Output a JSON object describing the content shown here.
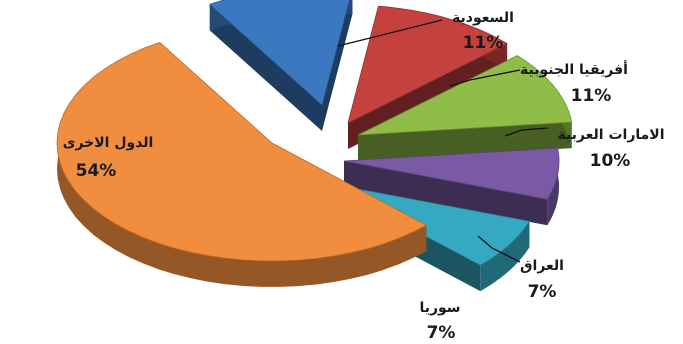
{
  "chart_data": {
    "type": "pie",
    "title": "",
    "slices": [
      {
        "label": "السعودية",
        "value_text": "11%",
        "value": 11,
        "color": "#3b78bf"
      },
      {
        "label": "أفريقيا الجنوبية",
        "value_text": "11%",
        "value": 11,
        "color": "#c4413e"
      },
      {
        "label": "الامارات العربية",
        "value_text": "10%",
        "value": 10,
        "color": "#8fbd48"
      },
      {
        "label": "العراق",
        "value_text": "7%",
        "value": 7,
        "color": "#7a5aa5"
      },
      {
        "label": "سوريا",
        "value_text": "7%",
        "value": 7,
        "color": "#36a9c2"
      },
      {
        "label": "الدول الاخرى",
        "value_text": "54%",
        "value": 54,
        "color": "#f18d3e"
      }
    ]
  }
}
